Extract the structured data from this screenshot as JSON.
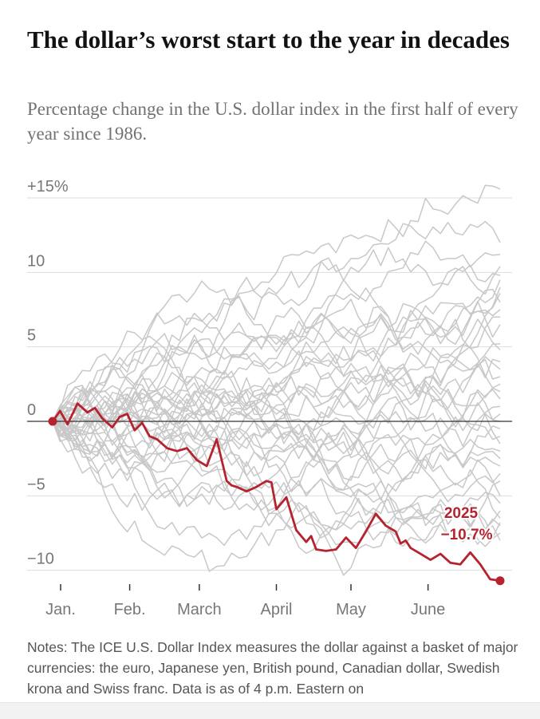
{
  "header": {
    "title": "The dollar’s worst start to the year in decades",
    "subtitle": "Percentage change in the U.S. dollar index in the first half of every year since 1986."
  },
  "notes": "Notes: The ICE U.S. Dollar Index measures the dollar against a basket of major currencies: the euro, Japanese yen, British pound, Canadian dollar, Swedish krona and Swiss franc. Data is as of 4 p.m. Eastern on",
  "colors": {
    "highlight": "#b5232e",
    "history": "#c8c8c8",
    "grid": "#dddddd",
    "zero": "#333333",
    "axis_text": "#777777"
  },
  "chart_data": {
    "type": "line",
    "title": "The dollar’s worst start to the year in decades",
    "xlabel": "",
    "ylabel": "Percentage change in the U.S. dollar index",
    "xlim": [
      0,
      180
    ],
    "ylim": [
      -11,
      16
    ],
    "y_ticks": [
      15,
      10,
      5,
      0,
      -5,
      -10
    ],
    "y_tick_labels": [
      "+15%",
      "10",
      "5",
      "0",
      "−5",
      "−10"
    ],
    "x_ticks": [
      0,
      31,
      59,
      90,
      120,
      151
    ],
    "x_tick_labels": [
      "Jan.",
      "Feb.",
      "March",
      "April",
      "May",
      "June"
    ],
    "historical_series_count": 39,
    "historical_series_label": "Years since 1986",
    "historical_end_values": [
      15.6,
      12.0,
      10.4,
      9.8,
      9.5,
      9.0,
      8.6,
      8.0,
      7.5,
      7.0,
      6.5,
      5.2,
      4.8,
      4.0,
      3.5,
      3.0,
      2.5,
      2.0,
      1.5,
      1.0,
      0.5,
      0.0,
      -0.5,
      -1.0,
      -1.5,
      -2.0,
      -2.5,
      -3.0,
      -3.5,
      -4.0,
      -5.0,
      -5.5,
      -6.0,
      -6.5,
      -7.0,
      -7.5,
      -8.0,
      -6.8,
      11.2
    ],
    "highlight": {
      "name": "2025",
      "end_label": "−10.7%",
      "x": [
        0,
        3,
        6,
        10,
        14,
        17,
        20,
        24,
        27,
        30,
        33,
        36,
        39,
        42,
        46,
        50,
        54,
        58,
        62,
        66,
        70,
        72,
        74,
        78,
        82,
        86,
        88,
        90,
        94,
        98,
        102,
        104,
        106,
        110,
        114,
        118,
        122,
        126,
        130,
        134,
        138,
        140,
        142,
        144,
        148,
        152,
        156,
        160,
        164,
        168,
        172,
        176,
        180
      ],
      "values": [
        0,
        0.7,
        -0.2,
        1.2,
        0.6,
        0.9,
        0.2,
        -0.4,
        0.3,
        0.5,
        -0.6,
        -0.1,
        -1.0,
        -1.2,
        -1.8,
        -2.0,
        -1.8,
        -2.6,
        -3.0,
        -1.2,
        -4.0,
        -4.3,
        -4.4,
        -4.7,
        -4.4,
        -4.0,
        -4.1,
        -5.9,
        -5.1,
        -7.3,
        -8.1,
        -7.7,
        -8.6,
        -8.7,
        -8.6,
        -7.8,
        -8.5,
        -7.4,
        -6.2,
        -7.0,
        -7.4,
        -8.2,
        -8.0,
        -8.5,
        -8.9,
        -9.3,
        -8.9,
        -9.5,
        -9.6,
        -8.8,
        -9.6,
        -10.6,
        -10.7
      ]
    }
  }
}
